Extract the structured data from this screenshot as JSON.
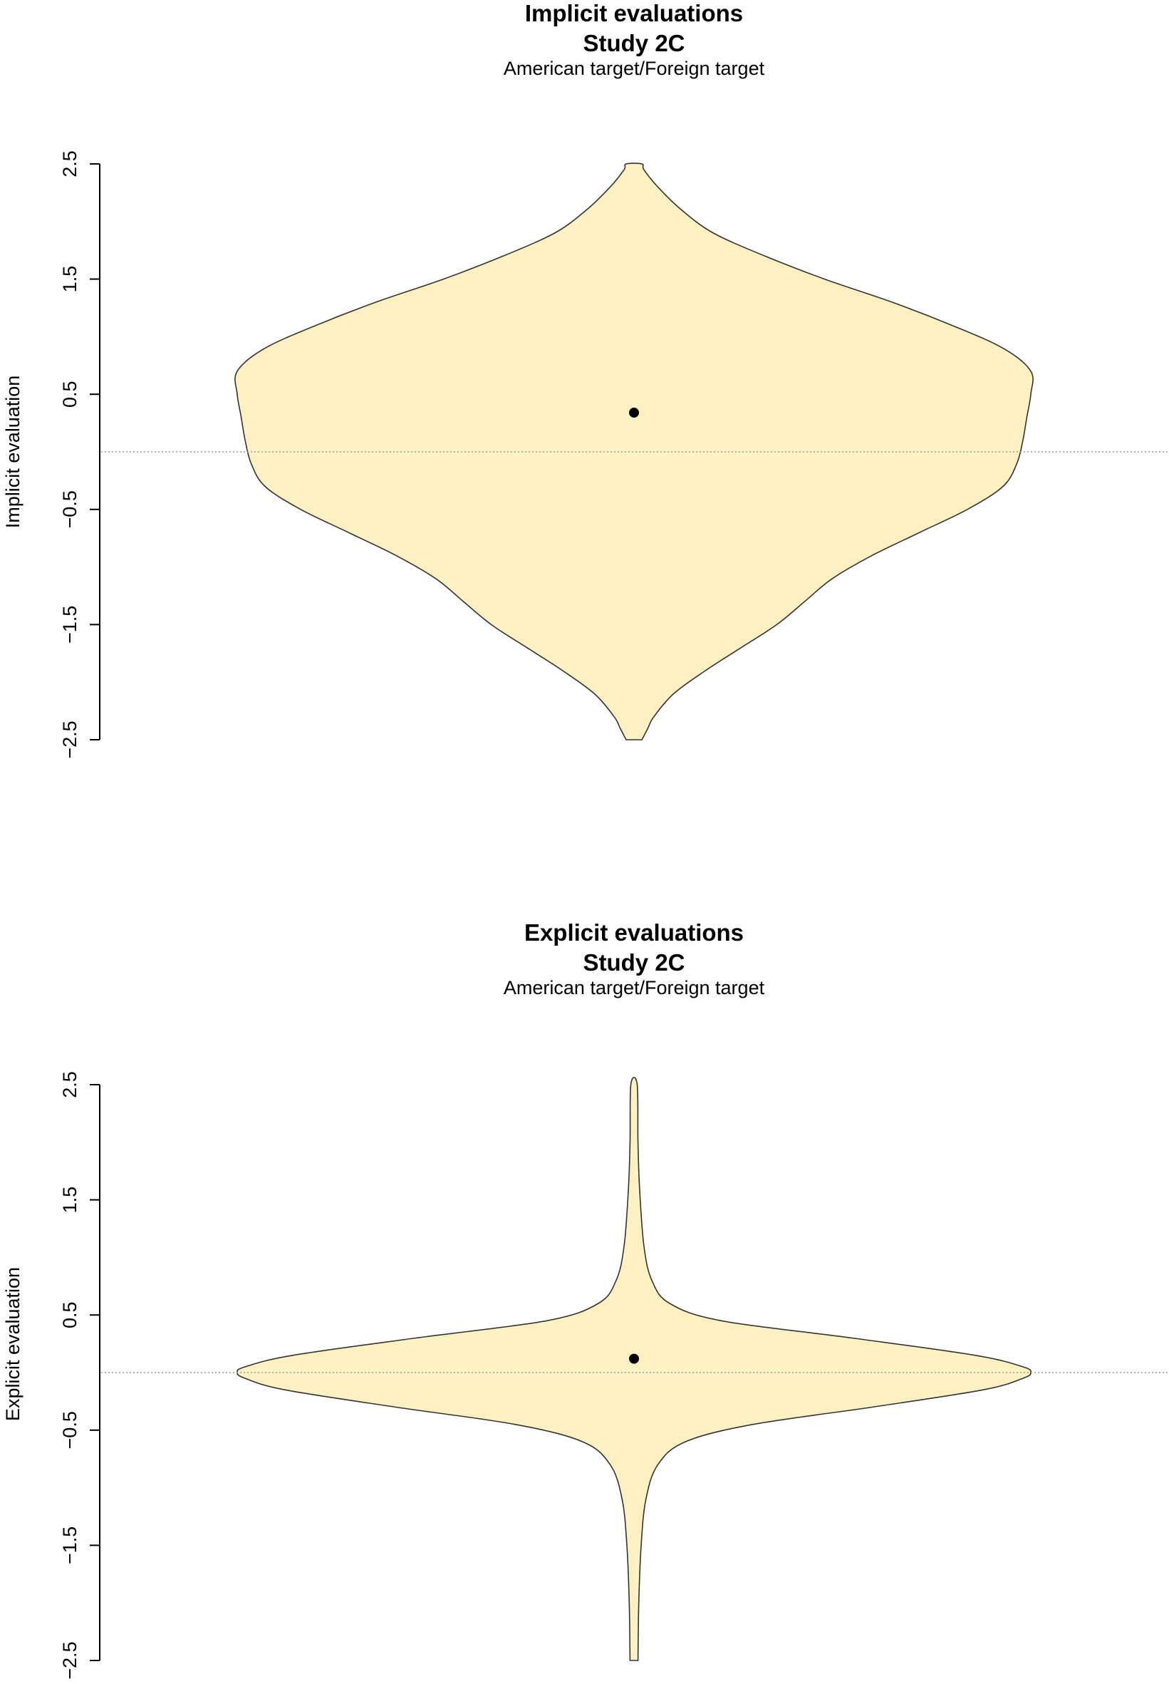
{
  "chart_data": [
    {
      "type": "violin",
      "title": "Implicit evaluations",
      "title2": "Study 2C",
      "subtitle": "American target/Foreign target",
      "ylabel": "Implicit evaluation",
      "ylim": [
        -2.5,
        2.5
      ],
      "yticks": [
        "−2.5",
        "−1.5",
        "−0.5",
        "0.5",
        "1.5",
        "2.5"
      ],
      "ytick_values": [
        -2.5,
        -1.5,
        -0.5,
        0.5,
        1.5,
        2.5
      ],
      "reference_line": 0,
      "mean": 0.34,
      "mean_ci": [
        0.3,
        0.38
      ],
      "fill_color": "#fdf1c1",
      "density_profile": [
        {
          "y": -2.5,
          "w": 0.02
        },
        {
          "y": -2.4,
          "w": 0.035
        },
        {
          "y": -2.3,
          "w": 0.05
        },
        {
          "y": -2.1,
          "w": 0.1
        },
        {
          "y": -1.9,
          "w": 0.18
        },
        {
          "y": -1.7,
          "w": 0.27
        },
        {
          "y": -1.5,
          "w": 0.36
        },
        {
          "y": -1.3,
          "w": 0.43
        },
        {
          "y": -1.1,
          "w": 0.5
        },
        {
          "y": -0.9,
          "w": 0.6
        },
        {
          "y": -0.7,
          "w": 0.72
        },
        {
          "y": -0.5,
          "w": 0.84
        },
        {
          "y": -0.3,
          "w": 0.93
        },
        {
          "y": -0.1,
          "w": 0.965
        },
        {
          "y": 0.1,
          "w": 0.98
        },
        {
          "y": 0.3,
          "w": 0.99
        },
        {
          "y": 0.5,
          "w": 1.0
        },
        {
          "y": 0.7,
          "w": 1.0
        },
        {
          "y": 0.9,
          "w": 0.93
        },
        {
          "y": 1.1,
          "w": 0.8
        },
        {
          "y": 1.3,
          "w": 0.65
        },
        {
          "y": 1.5,
          "w": 0.48
        },
        {
          "y": 1.7,
          "w": 0.33
        },
        {
          "y": 1.9,
          "w": 0.2
        },
        {
          "y": 2.1,
          "w": 0.12
        },
        {
          "y": 2.3,
          "w": 0.06
        },
        {
          "y": 2.45,
          "w": 0.025
        },
        {
          "y": 2.5,
          "w": 0.02
        }
      ]
    },
    {
      "type": "violin",
      "title": "Explicit evaluations",
      "title2": "Study 2C",
      "subtitle": "American target/Foreign target",
      "ylabel": "Explicit evaluation",
      "ylim": [
        -2.5,
        2.5
      ],
      "yticks": [
        "−2.5",
        "−1.5",
        "−0.5",
        "0.5",
        "1.5",
        "2.5"
      ],
      "ytick_values": [
        -2.5,
        -1.5,
        -0.5,
        0.5,
        1.5,
        2.5
      ],
      "reference_line": 0,
      "mean": 0.12,
      "mean_ci": [
        0.08,
        0.16
      ],
      "fill_color": "#fdf1c1",
      "density_profile": [
        {
          "y": -2.5,
          "w": 0.01
        },
        {
          "y": -2.0,
          "w": 0.012
        },
        {
          "y": -1.5,
          "w": 0.018
        },
        {
          "y": -1.1,
          "w": 0.03
        },
        {
          "y": -0.8,
          "w": 0.06
        },
        {
          "y": -0.6,
          "w": 0.13
        },
        {
          "y": -0.45,
          "w": 0.3
        },
        {
          "y": -0.3,
          "w": 0.6
        },
        {
          "y": -0.15,
          "w": 0.88
        },
        {
          "y": -0.05,
          "w": 0.98
        },
        {
          "y": 0.0,
          "w": 1.0
        },
        {
          "y": 0.05,
          "w": 0.98
        },
        {
          "y": 0.15,
          "w": 0.86
        },
        {
          "y": 0.3,
          "w": 0.55
        },
        {
          "y": 0.45,
          "w": 0.22
        },
        {
          "y": 0.6,
          "w": 0.09
        },
        {
          "y": 0.8,
          "w": 0.045
        },
        {
          "y": 1.1,
          "w": 0.025
        },
        {
          "y": 1.6,
          "w": 0.014
        },
        {
          "y": 2.0,
          "w": 0.01
        },
        {
          "y": 2.5,
          "w": 0.008
        }
      ]
    }
  ]
}
